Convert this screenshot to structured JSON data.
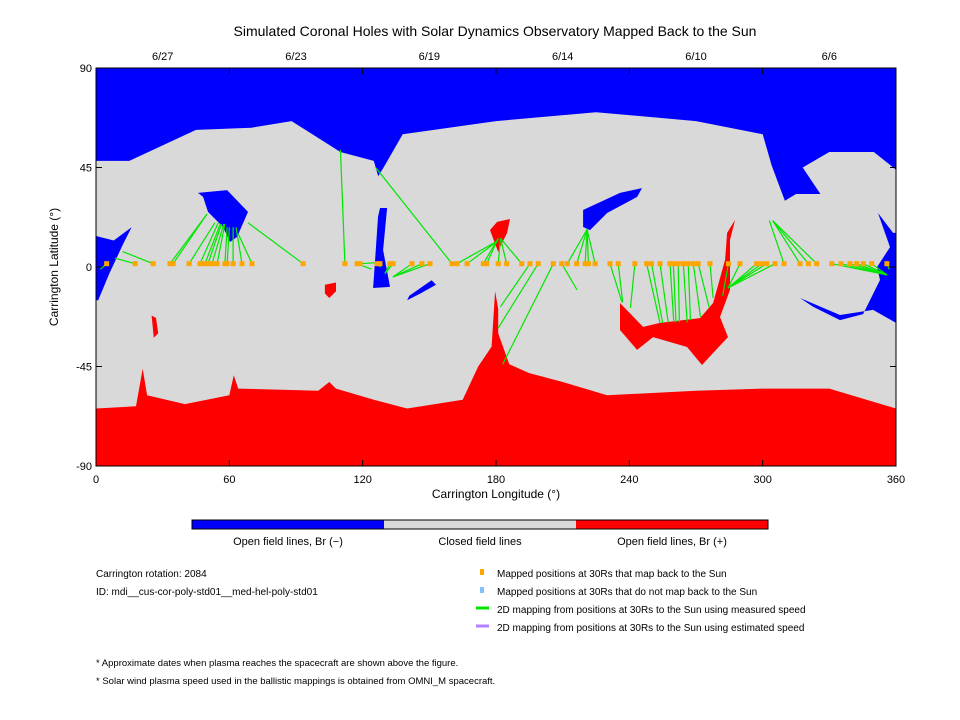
{
  "chart_data": {
    "type": "map",
    "title": "Simulated Coronal Holes with Solar Dynamics Observatory Mapped Back to the Sun",
    "xlabel": "Carrington Longitude (°)",
    "ylabel": "Carrington Latitude (°)",
    "xlim": [
      0,
      360
    ],
    "ylim": [
      -90,
      90
    ],
    "xticks": [
      "0",
      "60",
      "120",
      "180",
      "240",
      "300",
      "360"
    ],
    "xtick_values": [
      0,
      60,
      120,
      180,
      240,
      300,
      360
    ],
    "yticks": [
      "90",
      "45",
      "0",
      "-45",
      "-90"
    ],
    "ytick_values": [
      90,
      45,
      0,
      -45,
      -90
    ],
    "dates_top": [
      {
        "label": "6/27",
        "lon": 30
      },
      {
        "label": "6/23",
        "lon": 90
      },
      {
        "label": "6/19",
        "lon": 150
      },
      {
        "label": "6/14",
        "lon": 210
      },
      {
        "label": "6/10",
        "lon": 270
      },
      {
        "label": "6/6",
        "lon": 330
      }
    ],
    "colors": {
      "open_negative": "#0000ff",
      "closed": "#d9d9d9",
      "open_positive": "#ff0000",
      "mapped_ok": "#ffa500",
      "mapped_not": "#80c0ff",
      "measured_line": "#00e600",
      "estimated_line": "#b380ff"
    },
    "regions": [
      {
        "type": "open_negative",
        "name": "north-polar-hole",
        "points": [
          [
            0,
            90
          ],
          [
            360,
            90
          ],
          [
            360,
            44
          ],
          [
            350,
            52
          ],
          [
            330,
            52
          ],
          [
            318,
            45
          ],
          [
            326,
            33
          ],
          [
            315,
            33
          ],
          [
            310,
            30
          ],
          [
            307,
            38
          ],
          [
            304,
            46
          ],
          [
            300,
            60
          ],
          [
            270,
            66
          ],
          [
            225,
            70
          ],
          [
            180,
            66
          ],
          [
            138,
            60
          ],
          [
            130,
            46
          ],
          [
            127,
            41
          ],
          [
            125,
            48
          ],
          [
            110,
            52
          ],
          [
            88,
            66
          ],
          [
            70,
            63
          ],
          [
            45,
            62
          ],
          [
            15,
            48
          ],
          [
            0,
            48
          ]
        ]
      },
      {
        "type": "open_positive",
        "name": "south-polar-hole",
        "points": [
          [
            0,
            -64
          ],
          [
            18,
            -63
          ],
          [
            21,
            -46
          ],
          [
            23,
            -58
          ],
          [
            40,
            -62
          ],
          [
            60,
            -58
          ],
          [
            62,
            -49
          ],
          [
            64,
            -55
          ],
          [
            100,
            -56
          ],
          [
            105,
            -52
          ],
          [
            108,
            -55
          ],
          [
            125,
            -60
          ],
          [
            140,
            -64
          ],
          [
            165,
            -60
          ],
          [
            172,
            -45
          ],
          [
            178,
            -36
          ],
          [
            179.6,
            -11
          ],
          [
            181,
            -19
          ],
          [
            181,
            -30
          ],
          [
            186,
            -44
          ],
          [
            195,
            -48
          ],
          [
            210,
            -52
          ],
          [
            230,
            -58
          ],
          [
            270,
            -56
          ],
          [
            300,
            -55
          ],
          [
            330,
            -55
          ],
          [
            360,
            -64
          ],
          [
            360,
            -90
          ],
          [
            0,
            -90
          ]
        ]
      },
      {
        "type": "open_positive",
        "name": "equatorial-red-hole-large",
        "points": [
          [
            235.8,
            -16.3
          ],
          [
            246.2,
            -27.1
          ],
          [
            253.8,
            -25.3
          ],
          [
            271.8,
            -23.1
          ],
          [
            277.7,
            -16.3
          ],
          [
            283.1,
            3.2
          ],
          [
            284,
            15.4
          ],
          [
            287.6,
            21.3
          ],
          [
            285.3,
            12.2
          ],
          [
            285.3,
            -10.4
          ],
          [
            280.8,
            -22.6
          ],
          [
            284.4,
            -31.7
          ],
          [
            277.7,
            -38.9
          ],
          [
            272.7,
            -44.3
          ],
          [
            266,
            -36.2
          ],
          [
            250.7,
            -31.7
          ],
          [
            243.5,
            -37.5
          ],
          [
            235.8,
            -28.5
          ]
        ]
      },
      {
        "type": "open_positive",
        "name": "red-hole-lon180",
        "points": [
          [
            177.3,
            16.7
          ],
          [
            180.5,
            20.4
          ],
          [
            186.3,
            21.7
          ],
          [
            185,
            15.4
          ],
          [
            181.8,
            9
          ],
          [
            181,
            6.8
          ]
        ]
      },
      {
        "type": "open_positive",
        "name": "red-hole-lon105",
        "points": [
          [
            103,
            -8
          ],
          [
            108,
            -7
          ],
          [
            108,
            -11
          ],
          [
            105,
            -14
          ],
          [
            103,
            -12
          ]
        ]
      },
      {
        "type": "open_positive",
        "name": "red-hole-lon26",
        "points": [
          [
            25,
            -22
          ],
          [
            27,
            -23
          ],
          [
            28,
            -30
          ],
          [
            26,
            -32
          ]
        ]
      },
      {
        "type": "open_negative",
        "name": "blue-hole-lon55",
        "points": [
          [
            45.9,
            33.5
          ],
          [
            59,
            34.8
          ],
          [
            68.4,
            24.9
          ],
          [
            63.5,
            13.6
          ],
          [
            60.3,
            11.3
          ],
          [
            57.2,
            18.1
          ],
          [
            50.4,
            24.9
          ],
          [
            48.2,
            31.7
          ]
        ]
      },
      {
        "type": "open_negative",
        "name": "blue-hole-left-edge",
        "points": [
          [
            0,
            14
          ],
          [
            8,
            12
          ],
          [
            16,
            18
          ],
          [
            12,
            10
          ],
          [
            6,
            -3
          ],
          [
            1,
            -15
          ],
          [
            0,
            -15
          ]
        ]
      },
      {
        "type": "open_negative",
        "name": "blue-hole-lon128",
        "points": [
          [
            127.8,
            26.7
          ],
          [
            131,
            26.7
          ],
          [
            129.2,
            7.7
          ],
          [
            132.3,
            -9
          ],
          [
            124.7,
            -9.5
          ],
          [
            125.6,
            3.2
          ],
          [
            126.9,
            22.6
          ]
        ]
      },
      {
        "type": "open_negative",
        "name": "blue-hole-lon148",
        "points": [
          [
            151,
            -6
          ],
          [
            153,
            -8
          ],
          [
            146,
            -12
          ],
          [
            140,
            -15
          ],
          [
            141,
            -13
          ]
        ]
      },
      {
        "type": "open_negative",
        "name": "blue-hole-lon230",
        "points": [
          [
            219.2,
            25.8
          ],
          [
            235.8,
            33.5
          ],
          [
            245.7,
            35.7
          ],
          [
            243.5,
            31.7
          ],
          [
            230,
            24.4
          ],
          [
            222.3,
            16.7
          ],
          [
            219.2,
            18.1
          ]
        ]
      },
      {
        "type": "open_negative",
        "name": "blue-hole-right-edge",
        "points": [
          [
            351.9,
            24.4
          ],
          [
            358.7,
            15.4
          ],
          [
            360,
            15.4
          ],
          [
            360,
            -25.3
          ],
          [
            349.7,
            -19.4
          ],
          [
            334.8,
            -21.7
          ],
          [
            316.8,
            -14
          ],
          [
            322.7,
            -18
          ],
          [
            334.8,
            -24
          ],
          [
            345.2,
            -21.3
          ],
          [
            352.8,
            -5.9
          ],
          [
            351.5,
            0
          ],
          [
            357.3,
            9
          ]
        ]
      }
    ],
    "dot_lat": 1.5,
    "mappings": [
      {
        "lon": 4.8,
        "sun_lon": 2,
        "sun_lat": -1
      },
      {
        "lon": 17.6,
        "sun_lon": 8.5,
        "sun_lat": 4
      },
      {
        "lon": 25.7,
        "sun_lon": 12,
        "sun_lat": 7
      },
      {
        "lon": 33.3,
        "sun_lon": 50,
        "sun_lat": 24
      },
      {
        "lon": 34.7,
        "sun_lon": 50,
        "sun_lat": 24
      },
      {
        "lon": 41.9,
        "sun_lon": 53.5,
        "sun_lat": 20
      },
      {
        "lon": 46.8,
        "sun_lon": 55,
        "sun_lat": 20
      },
      {
        "lon": 49,
        "sun_lon": 56,
        "sun_lat": 19.5
      },
      {
        "lon": 50.4,
        "sun_lon": 56.5,
        "sun_lat": 19.5
      },
      {
        "lon": 52.2,
        "sun_lon": 57.5,
        "sun_lat": 19.5
      },
      {
        "lon": 54.5,
        "sun_lon": 58,
        "sun_lat": 19.5
      },
      {
        "lon": 58,
        "sun_lon": 59,
        "sun_lat": 18
      },
      {
        "lon": 59,
        "sun_lon": 60,
        "sun_lat": 18
      },
      {
        "lon": 61.7,
        "sun_lon": 61.7,
        "sun_lat": 18
      },
      {
        "lon": 65.7,
        "sun_lon": 63,
        "sun_lat": 18
      },
      {
        "lon": 70.2,
        "sun_lon": 64,
        "sun_lat": 15
      },
      {
        "lon": 93.2,
        "sun_lon": 68.4,
        "sun_lat": 20
      },
      {
        "lon": 112,
        "sun_lon": 110,
        "sun_lat": 53
      },
      {
        "lon": 117.5,
        "sun_lon": 124,
        "sun_lat": -1
      },
      {
        "lon": 118.8,
        "sun_lon": 127,
        "sun_lat": 2
      },
      {
        "lon": 126.5,
        "sun_lon": 128,
        "sun_lat": 0
      },
      {
        "lon": 127.8,
        "sun_lon": 128,
        "sun_lat": 0
      },
      {
        "lon": 132.3,
        "sun_lon": 130,
        "sun_lat": -3
      },
      {
        "lon": 133.7,
        "sun_lon": 130,
        "sun_lat": -3
      },
      {
        "lon": 142.2,
        "sun_lon": 133.6,
        "sun_lat": -4.5
      },
      {
        "lon": 146.7,
        "sun_lon": 133.6,
        "sun_lat": -4.5
      },
      {
        "lon": 150.3,
        "sun_lon": 133.6,
        "sun_lat": -4.5
      },
      {
        "lon": 160.2,
        "sun_lon": 126,
        "sun_lat": 44.8
      },
      {
        "lon": 162.5,
        "sun_lon": 181,
        "sun_lat": 12
      },
      {
        "lon": 167,
        "sun_lon": 181,
        "sun_lat": 12
      },
      {
        "lon": 174.3,
        "sun_lon": 181,
        "sun_lat": 13
      },
      {
        "lon": 175.8,
        "sun_lon": 181,
        "sun_lat": 13
      },
      {
        "lon": 181,
        "sun_lon": 182,
        "sun_lat": 13
      },
      {
        "lon": 184.8,
        "sun_lon": 182,
        "sun_lat": 13
      },
      {
        "lon": 191.6,
        "sun_lon": 182,
        "sun_lat": 13
      },
      {
        "lon": 195.3,
        "sun_lon": 182,
        "sun_lat": -18
      },
      {
        "lon": 199,
        "sun_lon": 181,
        "sun_lat": -27.6
      },
      {
        "lon": 205.8,
        "sun_lon": 183,
        "sun_lat": -44
      },
      {
        "lon": 209.6,
        "sun_lon": 216.5,
        "sun_lat": -10.4
      },
      {
        "lon": 212.1,
        "sun_lon": 221,
        "sun_lat": 17
      },
      {
        "lon": 216.3,
        "sun_lon": 221,
        "sun_lat": 17
      },
      {
        "lon": 220.1,
        "sun_lon": 221,
        "sun_lat": 17
      },
      {
        "lon": 221.6,
        "sun_lon": 221,
        "sun_lat": 17
      },
      {
        "lon": 224.6,
        "sun_lon": 221,
        "sun_lat": 17
      },
      {
        "lon": 231.3,
        "sun_lon": 236.7,
        "sun_lat": -16
      },
      {
        "lon": 235,
        "sun_lon": 237,
        "sun_lat": -16
      },
      {
        "lon": 242.5,
        "sun_lon": 240.5,
        "sun_lat": -18.5
      },
      {
        "lon": 247.8,
        "sun_lon": 253.8,
        "sun_lat": -25.3
      },
      {
        "lon": 250,
        "sun_lon": 255,
        "sun_lat": -25.3
      },
      {
        "lon": 253.8,
        "sun_lon": 257.5,
        "sun_lat": -25
      },
      {
        "lon": 258.3,
        "sun_lon": 260,
        "sun_lat": -25
      },
      {
        "lon": 259.8,
        "sun_lon": 261,
        "sun_lat": -25
      },
      {
        "lon": 262,
        "sun_lon": 262.5,
        "sun_lat": -25
      },
      {
        "lon": 264.3,
        "sun_lon": 266,
        "sun_lat": -25
      },
      {
        "lon": 266.5,
        "sun_lon": 267.5,
        "sun_lat": -24
      },
      {
        "lon": 268.8,
        "sun_lon": 272,
        "sun_lat": -22.6
      },
      {
        "lon": 271,
        "sun_lon": 276,
        "sun_lat": -18.5
      },
      {
        "lon": 276.3,
        "sun_lon": 277.7,
        "sun_lat": -14
      },
      {
        "lon": 284.6,
        "sun_lon": 282,
        "sun_lat": -13
      },
      {
        "lon": 289.8,
        "sun_lon": 284.4,
        "sun_lat": -9.5
      },
      {
        "lon": 297.3,
        "sun_lon": 284.4,
        "sun_lat": -9.5
      },
      {
        "lon": 299.6,
        "sun_lon": 284.4,
        "sun_lat": -9.5
      },
      {
        "lon": 301.8,
        "sun_lon": 284.4,
        "sun_lat": -9.5
      },
      {
        "lon": 305.6,
        "sun_lon": 284.4,
        "sun_lat": -9.5
      },
      {
        "lon": 309.6,
        "sun_lon": 303,
        "sun_lat": 21
      },
      {
        "lon": 316.8,
        "sun_lon": 304.5,
        "sun_lat": 21
      },
      {
        "lon": 320.6,
        "sun_lon": 304.5,
        "sun_lat": 21
      },
      {
        "lon": 324.3,
        "sun_lon": 304.5,
        "sun_lat": 21
      },
      {
        "lon": 331.1,
        "sun_lon": 356,
        "sun_lat": -3.6
      },
      {
        "lon": 335.3,
        "sun_lon": 356,
        "sun_lat": -3.6
      },
      {
        "lon": 339.3,
        "sun_lon": 356,
        "sun_lat": -3.6
      },
      {
        "lon": 342.3,
        "sun_lon": 356,
        "sun_lat": -3.6
      },
      {
        "lon": 345.3,
        "sun_lon": 356,
        "sun_lat": -3.6
      },
      {
        "lon": 349.1,
        "sun_lon": 356,
        "sun_lat": -3.6
      },
      {
        "lon": 355.9,
        "sun_lon": 357,
        "sun_lat": -1
      }
    ]
  },
  "colorbar": {
    "labels": [
      "Open field lines, Br (−)",
      "Closed field lines",
      "Open field lines, Br (+)"
    ]
  },
  "info": {
    "rotation": "Carrington rotation: 2084",
    "id": "ID: mdi__cus-cor-poly-std01__med-hel-poly-std01"
  },
  "legend": [
    {
      "label": "Mapped positions at 30Rs that map back to the Sun",
      "kind": "square",
      "color": "#ffa500"
    },
    {
      "label": "Mapped positions at 30Rs that do not map back to the Sun",
      "kind": "square",
      "color": "#80c0ff"
    },
    {
      "label": "2D mapping from positions at 30Rs to the Sun using measured speed",
      "kind": "line",
      "color": "#00e600"
    },
    {
      "label": "2D mapping from positions at 30Rs to the Sun using estimated speed",
      "kind": "line",
      "color": "#b380ff"
    }
  ],
  "footnotes": [
    "* Approximate dates when plasma reaches the spacecraft are shown above the figure.",
    "* Solar wind plasma speed used in the ballistic mappings is obtained from OMNI_M spacecraft."
  ]
}
